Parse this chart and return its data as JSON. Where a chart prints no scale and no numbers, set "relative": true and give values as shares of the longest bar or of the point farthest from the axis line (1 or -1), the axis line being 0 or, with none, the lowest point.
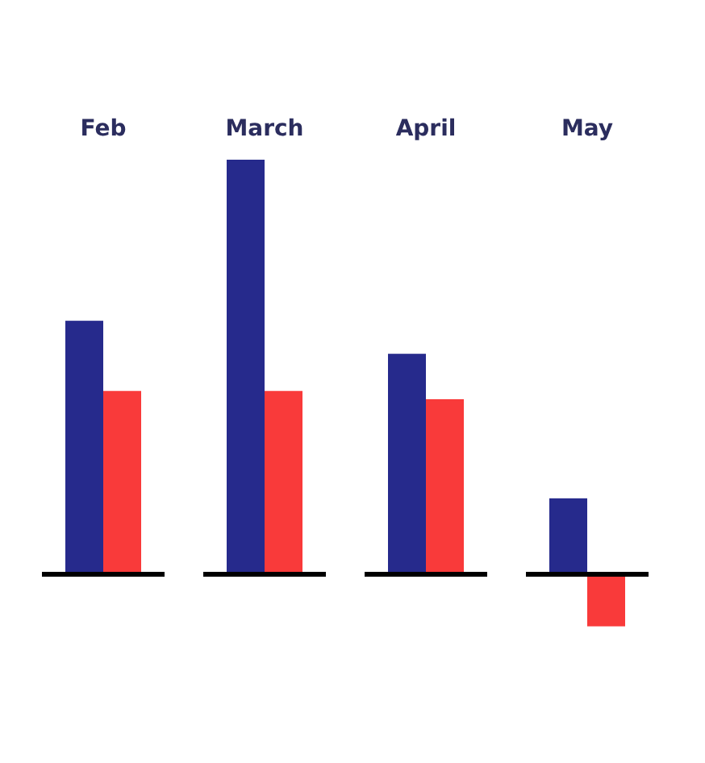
{
  "chart_data": {
    "type": "bar",
    "relative": true,
    "categories": [
      "Feb",
      "March",
      "April",
      "May"
    ],
    "series": [
      {
        "color": "#262a8c",
        "values": [
          0.61,
          1,
          0.53,
          0.18
        ]
      },
      {
        "color": "#f93a3a",
        "values": [
          0.44,
          0.44,
          0.42,
          -0.13
        ]
      }
    ]
  }
}
